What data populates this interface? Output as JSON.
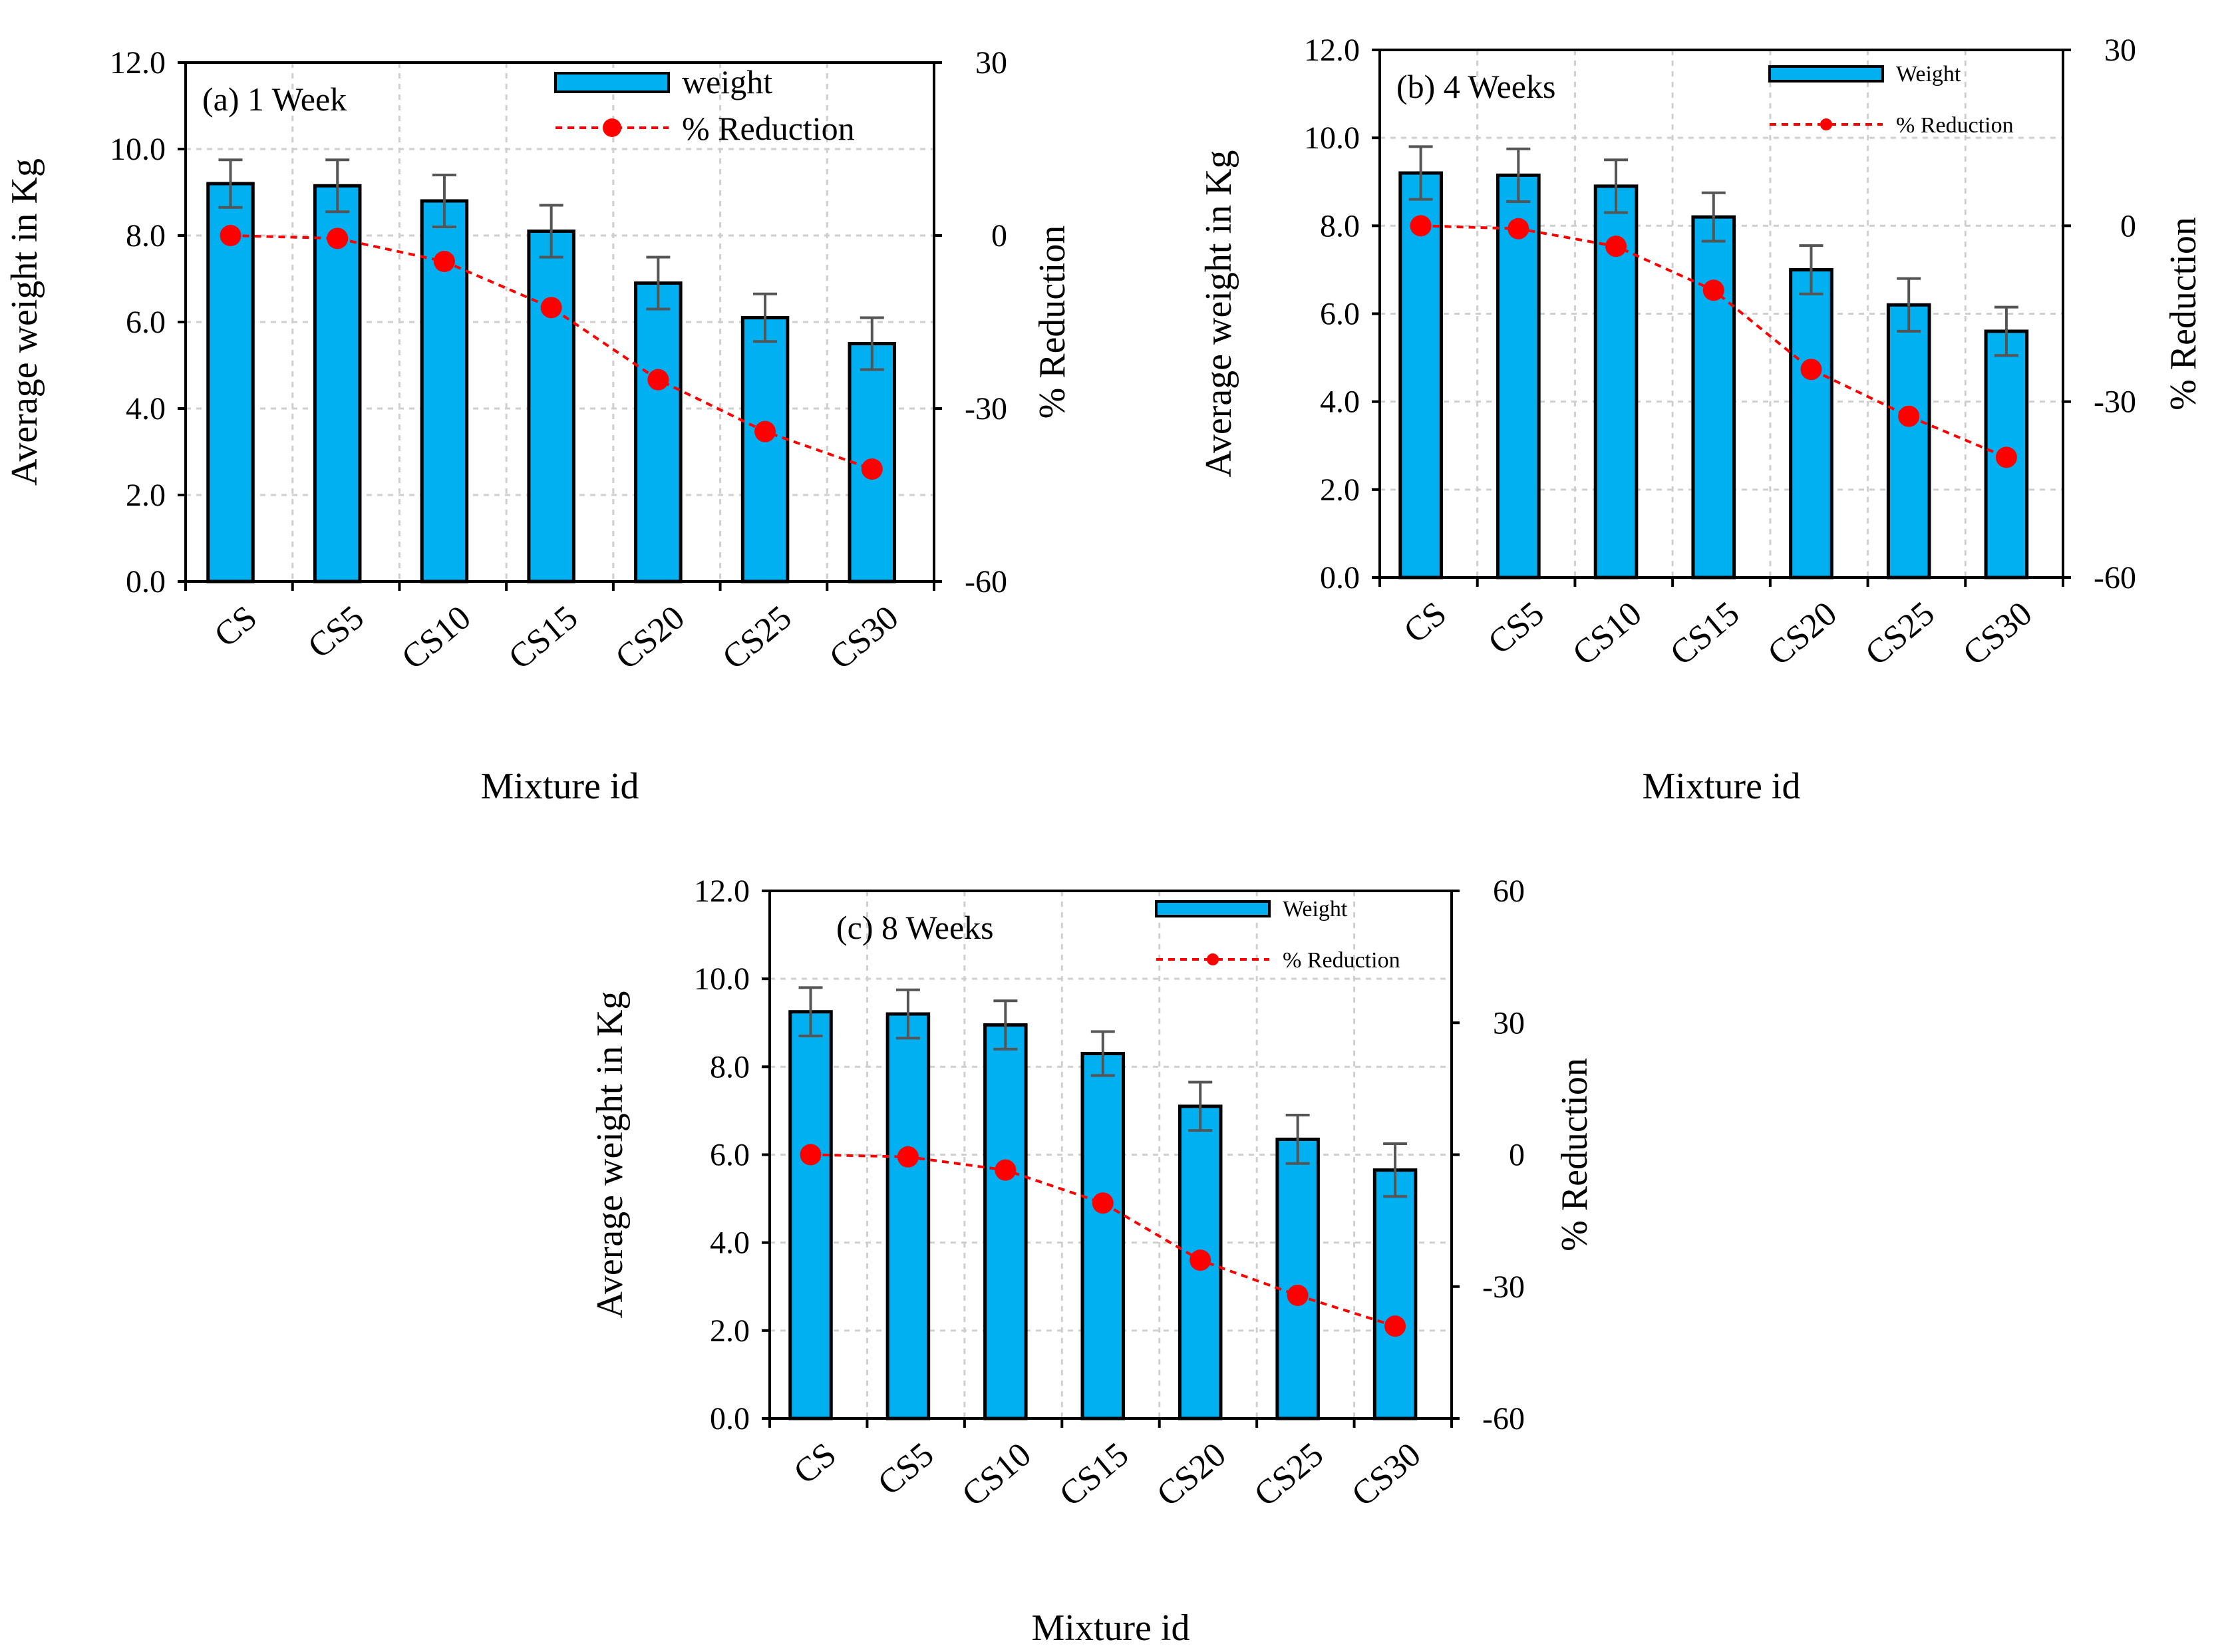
{
  "chart_data": [
    {
      "type": "bar",
      "title": "(a) 1 Week",
      "categories": [
        "CS",
        "CS5",
        "CS10",
        "CS15",
        "CS20",
        "CS25",
        "CS30"
      ],
      "xlabel": "Mixture id",
      "ylabel": "Average weight in Kg",
      "y2label": "% Reduction",
      "ylim": [
        0,
        12
      ],
      "yticks": [
        "0.0",
        "2.0",
        "4.0",
        "6.0",
        "8.0",
        "10.0",
        "12.0"
      ],
      "y2lim": [
        -60,
        30
      ],
      "y2ticks": [
        "-60",
        "-30",
        "0",
        "30"
      ],
      "grid": true,
      "legend_position": "top-right",
      "series": [
        {
          "name": "weight",
          "type": "bar",
          "values": [
            9.2,
            9.15,
            8.8,
            8.1,
            6.9,
            6.1,
            5.5
          ],
          "error": [
            0.55,
            0.6,
            0.6,
            0.6,
            0.6,
            0.55,
            0.6
          ],
          "color": "#00b0f0"
        },
        {
          "name": "% Reduction",
          "type": "line",
          "axis": "right",
          "values": [
            0,
            -0.5,
            -4.5,
            -12.5,
            -25,
            -34,
            -40.5
          ],
          "color": "#ff0000"
        }
      ]
    },
    {
      "type": "bar",
      "title": "(b) 4 Weeks",
      "categories": [
        "CS",
        "CS5",
        "CS10",
        "CS15",
        "CS20",
        "CS25",
        "CS30"
      ],
      "xlabel": "Mixture id",
      "ylabel": "Average weight in Kg",
      "y2label": "% Reduction",
      "ylim": [
        0,
        12
      ],
      "yticks": [
        "0.0",
        "2.0",
        "4.0",
        "6.0",
        "8.0",
        "10.0",
        "12.0"
      ],
      "y2lim": [
        -60,
        30
      ],
      "y2ticks": [
        "-60",
        "-30",
        "0",
        "30"
      ],
      "grid": true,
      "legend_position": "top-right",
      "series": [
        {
          "name": "Weight",
          "type": "bar",
          "values": [
            9.2,
            9.15,
            8.9,
            8.2,
            7.0,
            6.2,
            5.6
          ],
          "error": [
            0.6,
            0.6,
            0.6,
            0.55,
            0.55,
            0.6,
            0.55
          ],
          "color": "#00b0f0"
        },
        {
          "name": "% Reduction",
          "type": "line",
          "axis": "right",
          "values": [
            0,
            -0.5,
            -3.5,
            -11,
            -24.5,
            -32.5,
            -39.5
          ],
          "color": "#ff0000"
        }
      ]
    },
    {
      "type": "bar",
      "title": "(c) 8 Weeks",
      "categories": [
        "CS",
        "CS5",
        "CS10",
        "CS15",
        "CS20",
        "CS25",
        "CS30"
      ],
      "xlabel": "Mixture id",
      "ylabel": "Average weight in Kg",
      "y2label": "% Reduction",
      "ylim": [
        0,
        12
      ],
      "yticks": [
        "0.0",
        "2.0",
        "4.0",
        "6.0",
        "8.0",
        "10.0",
        "12.0"
      ],
      "y2lim": [
        -60,
        60
      ],
      "y2ticks": [
        "-60",
        "-30",
        "0",
        "30",
        "60"
      ],
      "grid": true,
      "legend_position": "top-right",
      "series": [
        {
          "name": "Weight",
          "type": "bar",
          "values": [
            9.25,
            9.2,
            8.95,
            8.3,
            7.1,
            6.35,
            5.65
          ],
          "error": [
            0.55,
            0.55,
            0.55,
            0.5,
            0.55,
            0.55,
            0.6
          ],
          "color": "#00b0f0"
        },
        {
          "name": "% Reduction",
          "type": "line",
          "axis": "right",
          "values": [
            0,
            -0.5,
            -3.5,
            -11,
            -24,
            -32,
            -39
          ],
          "color": "#ff0000"
        }
      ]
    }
  ]
}
